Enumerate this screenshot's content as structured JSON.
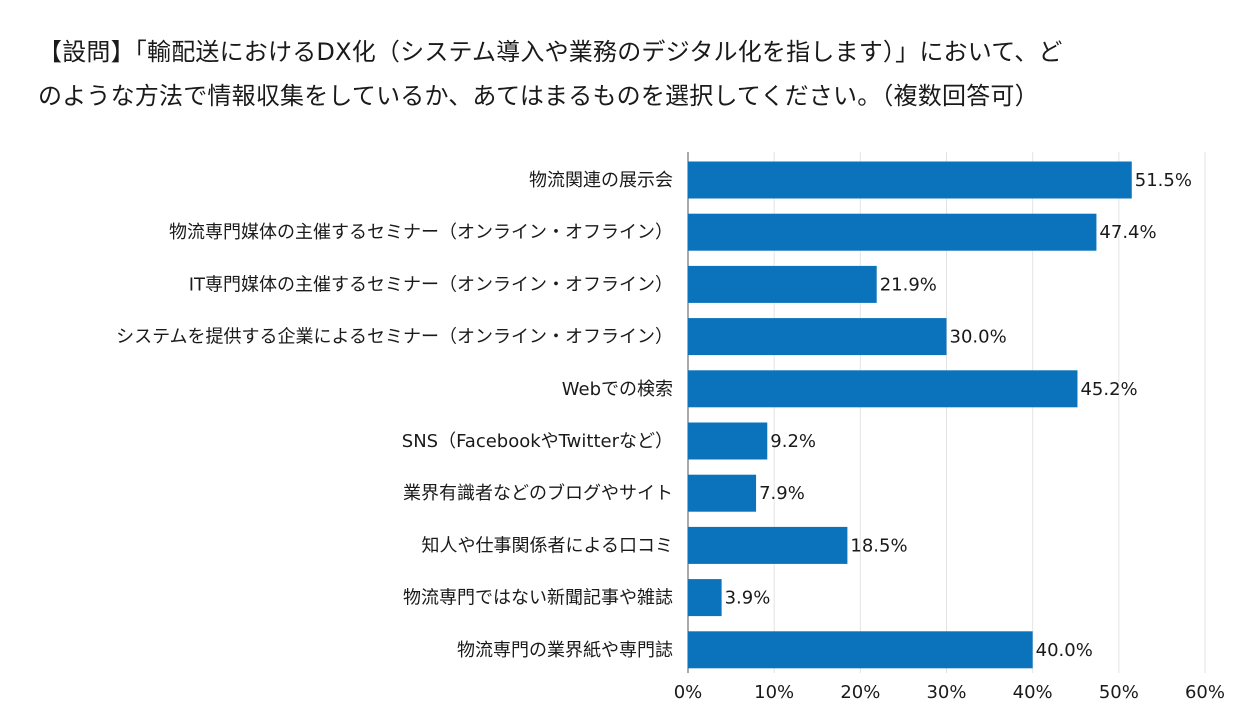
{
  "title_lines": [
    "【設問】「輸配送におけるDX化（システム導入や業務のデジタル化を指します）」において、ど",
    "のような方法で情報収集をしているか、あてはまるものを選択してください。（複数回答可）"
  ],
  "chart_data": {
    "type": "bar",
    "orientation": "horizontal",
    "title": "【設問】「輸配送におけるDX化（システム導入や業務のデジタル化を指します）」において、どのような方法で情報収集をしているか、あてはまるものを選択してください。（複数回答可）",
    "categories": [
      "物流関連の展示会",
      "物流専門媒体の主催するセミナー（オンライン・オフライン）",
      "IT専門媒体の主催するセミナー（オンライン・オフライン）",
      "システムを提供する企業によるセミナー（オンライン・オフライン）",
      "Webでの検索",
      "SNS（FacebookやTwitterなど）",
      "業界有識者などのブログやサイト",
      "知人や仕事関係者による口コミ",
      "物流専門ではない新聞記事や雑誌",
      "物流専門の業界紙や専門誌"
    ],
    "values": [
      51.5,
      47.4,
      21.9,
      30.0,
      45.2,
      9.2,
      7.9,
      18.5,
      3.9,
      40.0
    ],
    "value_labels": [
      "51.5%",
      "47.4%",
      "21.9%",
      "30.0%",
      "45.2%",
      "9.2%",
      "7.9%",
      "18.5%",
      "3.9%",
      "40.0%"
    ],
    "xlim": [
      0,
      60
    ],
    "xticks": [
      0,
      10,
      20,
      30,
      40,
      50,
      60
    ],
    "xtick_labels": [
      "0%",
      "10%",
      "20%",
      "30%",
      "40%",
      "50%",
      "60%"
    ],
    "xlabel": "",
    "ylabel": "",
    "grid": true,
    "bar_color": "#0b73bc"
  }
}
